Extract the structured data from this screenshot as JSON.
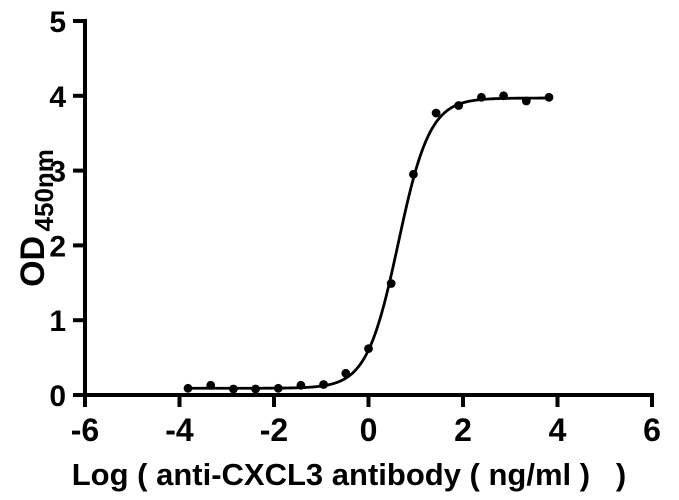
{
  "chart_data": {
    "type": "scatter",
    "title": "",
    "xlabel": "Log ( anti-CXCL3 antibody ( ng/ml )   )",
    "ylabel": "OD",
    "ylabel_subscript": "450nm",
    "x": [
      -3.82,
      -3.34,
      -2.86,
      -2.39,
      -1.91,
      -1.43,
      -0.95,
      -0.48,
      0.0,
      0.48,
      0.95,
      1.43,
      1.91,
      2.39,
      2.86,
      3.34,
      3.82
    ],
    "y": [
      0.09,
      0.13,
      0.08,
      0.08,
      0.09,
      0.13,
      0.14,
      0.29,
      0.62,
      1.49,
      2.95,
      3.77,
      3.87,
      3.98,
      4.0,
      3.93,
      3.98
    ],
    "x_ticks": [
      -6,
      -4,
      -2,
      0,
      2,
      4,
      6
    ],
    "y_ticks": [
      0,
      1,
      2,
      3,
      4,
      5
    ],
    "xlim": [
      -6,
      6
    ],
    "ylim": [
      0,
      5
    ],
    "grid": false,
    "legend": false,
    "marker": "filled-circle",
    "fit_curve": {
      "model": "4PL",
      "bottom": 0.09,
      "top": 3.97,
      "logEC50": 0.63,
      "hill": 1.3,
      "x_start": -3.82,
      "x_end": 3.82
    },
    "colors": {
      "background": "#ffffff",
      "axis": "#000000",
      "text": "#000000",
      "marker": "#000000",
      "curve": "#000000"
    }
  }
}
